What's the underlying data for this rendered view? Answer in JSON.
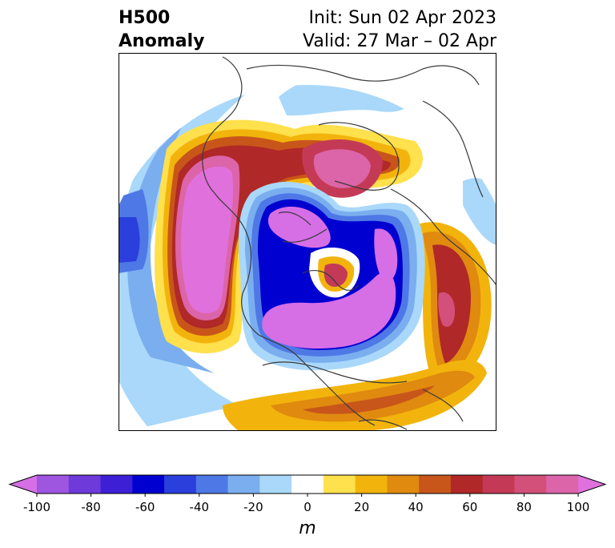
{
  "title": {
    "left_line1": "H500",
    "left_line2": "Anomaly",
    "right_line1": "Init: Sun 02 Apr 2023",
    "right_line2": "Valid: 27 Mar – 02 Apr"
  },
  "colorbar": {
    "unit": "m",
    "ticks": [
      "-100",
      "-80",
      "-60",
      "-40",
      "-20",
      "0",
      "20",
      "40",
      "60",
      "80",
      "100"
    ],
    "colors": [
      "#d66ee6",
      "#9e55e0",
      "#6e3ad9",
      "#3d1fd6",
      "#0000d0",
      "#2a3fdc",
      "#4e78e6",
      "#7aaeef",
      "#a9d8fa",
      "#ffffff",
      "#ffe04d",
      "#f2b40c",
      "#e08a10",
      "#c8561a",
      "#b02828",
      "#c43a56",
      "#d2507a",
      "#dc64a8",
      "#e070dc"
    ]
  },
  "colors": {
    "coast": "#3a3a3a",
    "frame": "#000000"
  }
}
